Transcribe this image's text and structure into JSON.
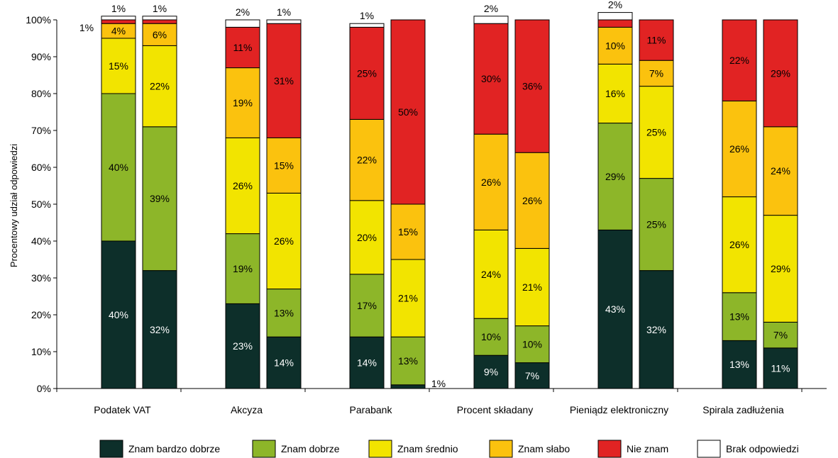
{
  "chart_data": {
    "type": "bar",
    "stacked": true,
    "ylabel": "Procentowy udział odpowiedzi",
    "ylim": [
      0,
      100
    ],
    "y_ticks": [
      "0%",
      "10%",
      "20%",
      "30%",
      "40%",
      "50%",
      "60%",
      "70%",
      "80%",
      "90%",
      "100%"
    ],
    "groups": [
      "Podatek VAT",
      "Akcyza",
      "Parabank",
      "Procent składany",
      "Pieniądz elektroniczny",
      "Spirala zadłużenia"
    ],
    "bars_per_group": 2,
    "series": [
      {
        "name": "Znam bardzo dobrze",
        "color": "#0d2f2a",
        "values": [
          40,
          32,
          23,
          14,
          14,
          1,
          9,
          7,
          43,
          32,
          13,
          11
        ],
        "labels": [
          "40%",
          "32%",
          "23%",
          "14%",
          "14%",
          "1%",
          "9%",
          "7%",
          "43%",
          "32%",
          "13%",
          "11%"
        ]
      },
      {
        "name": "Znam dobrze",
        "color": "#8db629",
        "values": [
          40,
          39,
          19,
          13,
          17,
          13,
          10,
          10,
          29,
          25,
          13,
          7
        ],
        "labels": [
          "40%",
          "39%",
          "19%",
          "13%",
          "17%",
          "13%",
          "10%",
          "10%",
          "29%",
          "25%",
          "13%",
          "7%"
        ]
      },
      {
        "name": "Znam średnio",
        "color": "#f2e400",
        "values": [
          15,
          22,
          26,
          26,
          20,
          21,
          24,
          21,
          16,
          25,
          26,
          29
        ],
        "labels": [
          "15%",
          "22%",
          "26%",
          "26%",
          "20%",
          "21%",
          "24%",
          "21%",
          "16%",
          "25%",
          "26%",
          "29%"
        ]
      },
      {
        "name": "Znam słabo",
        "color": "#fbc20e",
        "values": [
          4,
          6,
          19,
          15,
          22,
          15,
          26,
          26,
          10,
          7,
          26,
          24
        ],
        "labels": [
          "4%",
          "6%",
          "19%",
          "15%",
          "22%",
          "15%",
          "26%",
          "26%",
          "10%",
          "7%",
          "26%",
          "24%"
        ]
      },
      {
        "name": "Nie znam",
        "color": "#e12323",
        "values": [
          1,
          1,
          11,
          31,
          25,
          50,
          30,
          36,
          2,
          11,
          22,
          29
        ],
        "labels": [
          "1%",
          "",
          "11%",
          "31%",
          "25%",
          "50%",
          "30%",
          "36%",
          "",
          "11%",
          "22%",
          "29%"
        ]
      },
      {
        "name": "Brak odpowiedzi",
        "color": "#ffffff",
        "values": [
          1,
          1,
          2,
          1,
          1,
          0,
          2,
          0,
          2,
          0,
          0,
          0
        ],
        "labels": [
          "1%",
          "1%",
          "2%",
          "1%",
          "1%",
          "",
          "2%",
          "",
          "2%",
          "",
          "",
          ""
        ]
      }
    ],
    "legend_position": "bottom",
    "grid": false
  }
}
